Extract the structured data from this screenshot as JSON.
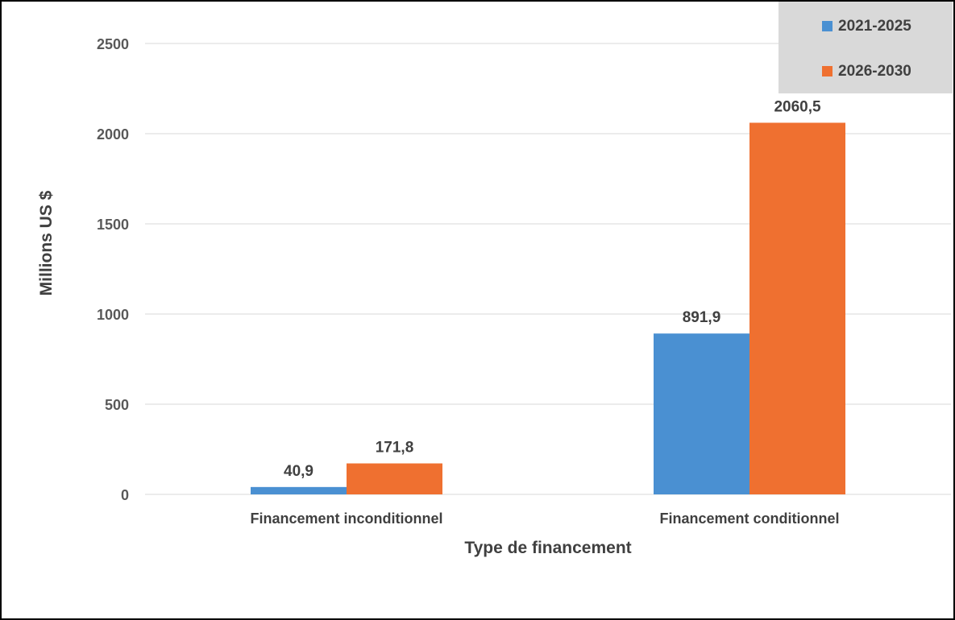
{
  "chart_data": {
    "type": "bar",
    "categories": [
      "Financement inconditionnel",
      "Financement conditionnel"
    ],
    "series": [
      {
        "name": "2021-2025",
        "values": [
          40.9,
          891.9
        ],
        "labels": [
          "40,9",
          "891,9"
        ],
        "color": "#4a90d2"
      },
      {
        "name": "2026-2030",
        "values": [
          171.8,
          2060.5
        ],
        "labels": [
          "171,8",
          "2060,5"
        ],
        "color": "#ef7030"
      }
    ],
    "xlabel": "Type de financement",
    "ylabel": "Millions US $",
    "ylim": [
      0,
      2500
    ],
    "yticks": [
      0,
      500,
      1000,
      1500,
      2000,
      2500
    ],
    "grid": true,
    "legend_position": "top-right"
  },
  "legend": {
    "background": "#d9d9d9"
  },
  "colors": {
    "gridline": "#d9d9d9",
    "axis_line": "#d9d9d9"
  }
}
